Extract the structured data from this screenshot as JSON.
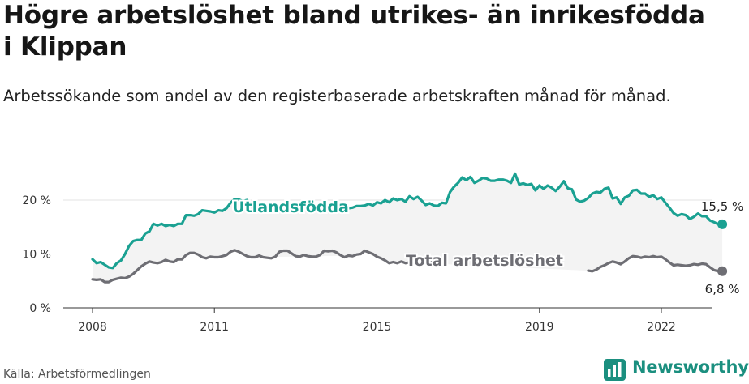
{
  "title": "Högre arbetslöshet bland utrikes- än inrikesfödda i Klippan",
  "subtitle": "Arbetssökande som andel av den registerbaserade arbetskraften månad för månad.",
  "source": "Källa: Arbetsförmedlingen",
  "brand": {
    "name": "Newsworthy",
    "icon": "newsworthy-logo-icon",
    "color": "#1b8f7f"
  },
  "chart_data": {
    "type": "line",
    "title": "Högre arbetslöshet bland utrikes- än inrikesfödda i Klippan",
    "xlabel": "",
    "ylabel": "",
    "x_ticks": [
      2008,
      2011,
      2015,
      2019,
      2022
    ],
    "y_ticks": [
      {
        "value": 0,
        "label": "0 %"
      },
      {
        "value": 10,
        "label": "10 %"
      },
      {
        "value": 20,
        "label": "20 %"
      }
    ],
    "ylim": [
      0,
      25
    ],
    "xlim": [
      2007.6,
      2023.25
    ],
    "grid": true,
    "band_between_series": true,
    "series": [
      {
        "name": "Utlandsfödda",
        "color": "#1aa192",
        "end_label": "15,5 %",
        "points": [
          [
            2008.0,
            9.0
          ],
          [
            2008.1,
            8.3
          ],
          [
            2008.2,
            8.5
          ],
          [
            2008.3,
            8.0
          ],
          [
            2008.4,
            7.5
          ],
          [
            2008.5,
            7.4
          ],
          [
            2008.6,
            8.3
          ],
          [
            2008.7,
            8.8
          ],
          [
            2008.8,
            10.0
          ],
          [
            2008.9,
            11.5
          ],
          [
            2009.0,
            12.4
          ],
          [
            2009.1,
            12.6
          ],
          [
            2009.2,
            12.6
          ],
          [
            2009.3,
            13.8
          ],
          [
            2009.4,
            14.2
          ],
          [
            2009.5,
            15.6
          ],
          [
            2009.6,
            15.3
          ],
          [
            2009.7,
            15.6
          ],
          [
            2009.8,
            15.2
          ],
          [
            2009.9,
            15.4
          ],
          [
            2010.0,
            15.2
          ],
          [
            2010.1,
            15.6
          ],
          [
            2010.2,
            15.6
          ],
          [
            2010.3,
            17.2
          ],
          [
            2010.4,
            17.2
          ],
          [
            2010.5,
            17.1
          ],
          [
            2010.6,
            17.4
          ],
          [
            2010.7,
            18.1
          ],
          [
            2010.8,
            18.0
          ],
          [
            2010.9,
            17.9
          ],
          [
            2011.0,
            17.7
          ],
          [
            2011.1,
            18.1
          ],
          [
            2011.2,
            18.0
          ],
          [
            2011.3,
            18.5
          ],
          [
            2011.4,
            19.5
          ],
          [
            2011.5,
            20.2
          ],
          [
            2011.6,
            20.1
          ],
          [
            2011.7,
            19.8
          ],
          [
            2011.8,
            20.0
          ],
          [
            2011.9,
            19.3
          ],
          [
            2012.0,
            18.5
          ],
          [
            2014.3,
            18.5
          ],
          [
            2014.4,
            18.6
          ],
          [
            2014.5,
            18.9
          ],
          [
            2014.6,
            18.9
          ],
          [
            2014.7,
            19.0
          ],
          [
            2014.8,
            19.3
          ],
          [
            2014.9,
            19.0
          ],
          [
            2015.0,
            19.6
          ],
          [
            2015.1,
            19.4
          ],
          [
            2015.2,
            20.0
          ],
          [
            2015.3,
            19.6
          ],
          [
            2015.4,
            20.3
          ],
          [
            2015.5,
            20.0
          ],
          [
            2015.6,
            20.2
          ],
          [
            2015.7,
            19.7
          ],
          [
            2015.8,
            20.7
          ],
          [
            2015.9,
            20.2
          ],
          [
            2016.0,
            20.6
          ],
          [
            2016.1,
            19.9
          ],
          [
            2016.2,
            19.1
          ],
          [
            2016.3,
            19.4
          ],
          [
            2016.4,
            19.0
          ],
          [
            2016.5,
            18.9
          ],
          [
            2016.6,
            19.5
          ],
          [
            2016.7,
            19.4
          ],
          [
            2016.8,
            21.5
          ],
          [
            2016.9,
            22.5
          ],
          [
            2017.0,
            23.2
          ],
          [
            2017.1,
            24.2
          ],
          [
            2017.2,
            23.7
          ],
          [
            2017.3,
            24.3
          ],
          [
            2017.4,
            23.2
          ],
          [
            2017.5,
            23.6
          ],
          [
            2017.6,
            24.1
          ],
          [
            2017.7,
            24.0
          ],
          [
            2017.8,
            23.6
          ],
          [
            2017.9,
            23.6
          ],
          [
            2018.0,
            23.8
          ],
          [
            2018.1,
            23.8
          ],
          [
            2018.2,
            23.6
          ],
          [
            2018.3,
            23.2
          ],
          [
            2018.4,
            24.9
          ],
          [
            2018.5,
            22.9
          ],
          [
            2018.6,
            23.1
          ],
          [
            2018.7,
            22.8
          ],
          [
            2018.8,
            23.0
          ],
          [
            2018.9,
            21.8
          ],
          [
            2019.0,
            22.7
          ],
          [
            2019.1,
            22.1
          ],
          [
            2019.2,
            22.7
          ],
          [
            2019.3,
            22.3
          ],
          [
            2019.4,
            21.7
          ],
          [
            2019.5,
            22.5
          ],
          [
            2019.6,
            23.5
          ],
          [
            2019.7,
            22.2
          ],
          [
            2019.8,
            22.0
          ],
          [
            2019.9,
            20.1
          ],
          [
            2020.0,
            19.7
          ],
          [
            2020.1,
            19.9
          ],
          [
            2020.2,
            20.4
          ],
          [
            2020.3,
            21.2
          ],
          [
            2020.4,
            21.5
          ],
          [
            2020.5,
            21.4
          ],
          [
            2020.6,
            22.1
          ],
          [
            2020.7,
            22.3
          ],
          [
            2020.8,
            20.3
          ],
          [
            2020.9,
            20.5
          ],
          [
            2021.0,
            19.3
          ],
          [
            2021.1,
            20.5
          ],
          [
            2021.2,
            20.8
          ],
          [
            2021.3,
            21.8
          ],
          [
            2021.4,
            21.9
          ],
          [
            2021.5,
            21.2
          ],
          [
            2021.6,
            21.2
          ],
          [
            2021.7,
            20.6
          ],
          [
            2021.8,
            20.9
          ],
          [
            2021.9,
            20.2
          ],
          [
            2022.0,
            20.5
          ],
          [
            2022.1,
            19.5
          ],
          [
            2022.2,
            18.6
          ],
          [
            2022.3,
            17.6
          ],
          [
            2022.4,
            17.1
          ],
          [
            2022.5,
            17.4
          ],
          [
            2022.6,
            17.2
          ],
          [
            2022.7,
            16.5
          ],
          [
            2022.8,
            16.9
          ],
          [
            2022.9,
            17.5
          ],
          [
            2023.0,
            17.0
          ],
          [
            2023.1,
            17.0
          ],
          [
            2023.2,
            16.2
          ],
          [
            2023.3,
            15.9
          ],
          [
            2023.4,
            15.5
          ],
          [
            2023.5,
            15.5
          ]
        ],
        "label_x": 2012.3
      },
      {
        "name": "Total arbetslöshet",
        "color": "#6e6e74",
        "end_label": "6,8 %",
        "points": [
          [
            2008.0,
            5.3
          ],
          [
            2008.1,
            5.2
          ],
          [
            2008.2,
            5.3
          ],
          [
            2008.3,
            4.8
          ],
          [
            2008.4,
            4.8
          ],
          [
            2008.5,
            5.2
          ],
          [
            2008.6,
            5.4
          ],
          [
            2008.7,
            5.6
          ],
          [
            2008.8,
            5.5
          ],
          [
            2008.9,
            5.8
          ],
          [
            2009.0,
            6.3
          ],
          [
            2009.1,
            7.0
          ],
          [
            2009.2,
            7.7
          ],
          [
            2009.3,
            8.2
          ],
          [
            2009.4,
            8.6
          ],
          [
            2009.5,
            8.4
          ],
          [
            2009.6,
            8.3
          ],
          [
            2009.7,
            8.5
          ],
          [
            2009.8,
            8.9
          ],
          [
            2009.9,
            8.6
          ],
          [
            2010.0,
            8.5
          ],
          [
            2010.1,
            9.0
          ],
          [
            2010.2,
            9.0
          ],
          [
            2010.3,
            9.8
          ],
          [
            2010.4,
            10.2
          ],
          [
            2010.5,
            10.2
          ],
          [
            2010.6,
            9.9
          ],
          [
            2010.7,
            9.4
          ],
          [
            2010.8,
            9.2
          ],
          [
            2010.9,
            9.5
          ],
          [
            2011.0,
            9.4
          ],
          [
            2011.1,
            9.4
          ],
          [
            2011.2,
            9.6
          ],
          [
            2011.3,
            9.8
          ],
          [
            2011.4,
            10.4
          ],
          [
            2011.5,
            10.7
          ],
          [
            2011.6,
            10.4
          ],
          [
            2011.7,
            10.0
          ],
          [
            2011.8,
            9.6
          ],
          [
            2011.9,
            9.4
          ],
          [
            2012.0,
            9.4
          ],
          [
            2012.1,
            9.7
          ],
          [
            2012.2,
            9.4
          ],
          [
            2012.3,
            9.3
          ],
          [
            2012.4,
            9.2
          ],
          [
            2012.5,
            9.5
          ],
          [
            2012.6,
            10.4
          ],
          [
            2012.7,
            10.6
          ],
          [
            2012.8,
            10.6
          ],
          [
            2012.9,
            10.1
          ],
          [
            2013.0,
            9.6
          ],
          [
            2013.1,
            9.5
          ],
          [
            2013.2,
            9.8
          ],
          [
            2013.3,
            9.6
          ],
          [
            2013.4,
            9.5
          ],
          [
            2013.5,
            9.5
          ],
          [
            2013.6,
            9.8
          ],
          [
            2013.7,
            10.6
          ],
          [
            2013.8,
            10.5
          ],
          [
            2013.9,
            10.6
          ],
          [
            2014.0,
            10.3
          ],
          [
            2014.1,
            9.8
          ],
          [
            2014.2,
            9.4
          ],
          [
            2014.3,
            9.7
          ],
          [
            2014.4,
            9.6
          ],
          [
            2014.5,
            9.9
          ],
          [
            2014.6,
            10.0
          ],
          [
            2014.7,
            10.6
          ],
          [
            2014.8,
            10.3
          ],
          [
            2014.9,
            10.0
          ],
          [
            2015.0,
            9.5
          ],
          [
            2015.1,
            9.2
          ],
          [
            2015.2,
            8.8
          ],
          [
            2015.3,
            8.3
          ],
          [
            2015.4,
            8.5
          ],
          [
            2015.5,
            8.3
          ],
          [
            2015.6,
            8.6
          ],
          [
            2015.7,
            8.3
          ],
          [
            2015.8,
            8.4
          ],
          [
            2015.9,
            8.8
          ],
          [
            2016.0,
            9.1
          ],
          [
            2016.1,
            9.0
          ],
          [
            2016.2,
            8.6
          ],
          [
            2016.3,
            8.4
          ],
          [
            2016.4,
            8.5
          ],
          [
            2016.5,
            8.5
          ],
          [
            2016.6,
            8.3
          ],
          [
            2016.7,
            8.1
          ],
          [
            2020.2,
            6.9
          ],
          [
            2020.3,
            6.8
          ],
          [
            2020.4,
            7.1
          ],
          [
            2020.5,
            7.6
          ],
          [
            2020.6,
            7.9
          ],
          [
            2020.7,
            8.3
          ],
          [
            2020.8,
            8.6
          ],
          [
            2020.9,
            8.4
          ],
          [
            2021.0,
            8.1
          ],
          [
            2021.1,
            8.6
          ],
          [
            2021.2,
            9.2
          ],
          [
            2021.3,
            9.6
          ],
          [
            2021.4,
            9.5
          ],
          [
            2021.5,
            9.3
          ],
          [
            2021.6,
            9.5
          ],
          [
            2021.7,
            9.4
          ],
          [
            2021.8,
            9.6
          ],
          [
            2021.9,
            9.4
          ],
          [
            2022.0,
            9.5
          ],
          [
            2022.1,
            9.0
          ],
          [
            2022.2,
            8.4
          ],
          [
            2022.3,
            7.9
          ],
          [
            2022.4,
            8.0
          ],
          [
            2022.5,
            7.9
          ],
          [
            2022.6,
            7.8
          ],
          [
            2022.7,
            7.9
          ],
          [
            2022.8,
            8.1
          ],
          [
            2022.9,
            8.0
          ],
          [
            2023.0,
            8.2
          ],
          [
            2023.1,
            8.1
          ],
          [
            2023.2,
            7.5
          ],
          [
            2023.3,
            7.0
          ],
          [
            2023.4,
            6.8
          ],
          [
            2023.5,
            6.8
          ]
        ],
        "label_x": 2017.0
      }
    ]
  }
}
